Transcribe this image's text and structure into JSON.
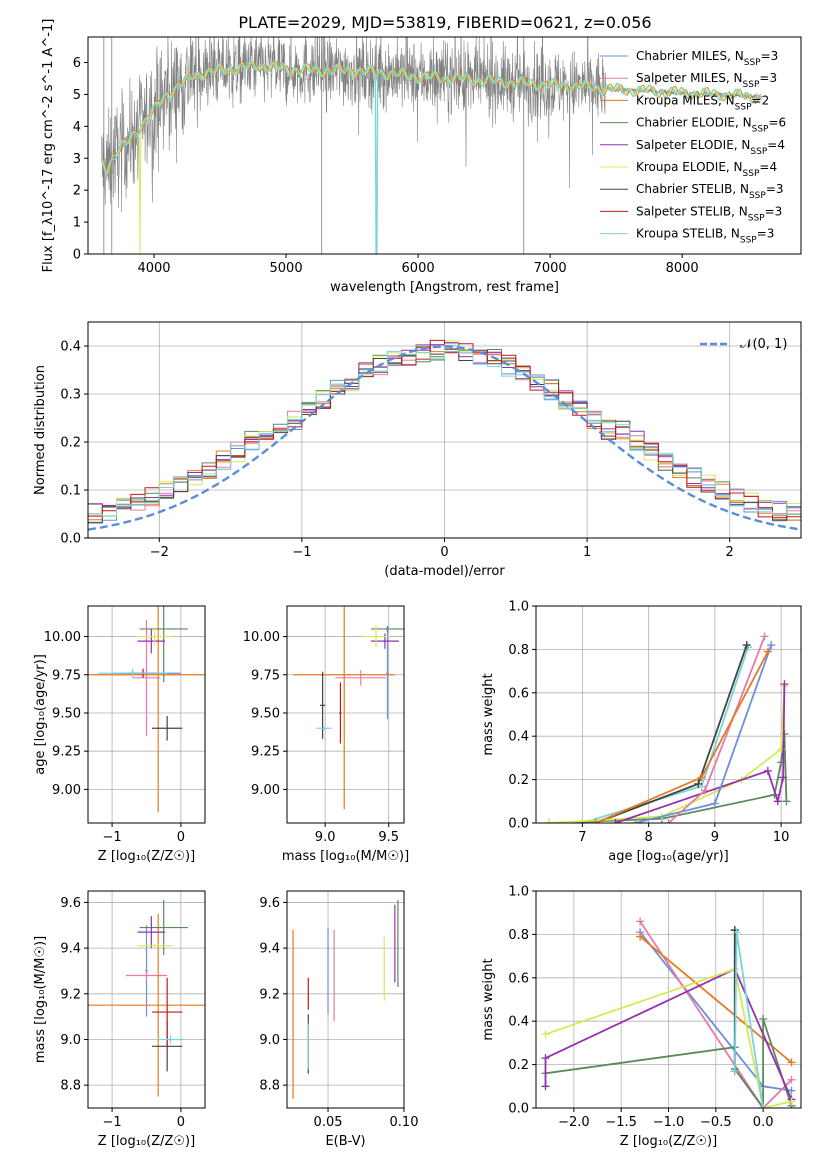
{
  "title": "PLATE=2029, MJD=53819, FIBERID=0621, z=0.056",
  "models": [
    {
      "name": "Chabrier MILES, N",
      "sub": "SSP",
      "n": "=3",
      "color": "#6a8fdc"
    },
    {
      "name": "Salpeter MILES, N",
      "sub": "SSP",
      "n": "=3",
      "color": "#e77aa8"
    },
    {
      "name": "Kroupa MILES, N",
      "sub": "SSP",
      "n": "=2",
      "color": "#e57a23"
    },
    {
      "name": "Chabrier ELODIE, N",
      "sub": "SSP",
      "n": "=6",
      "color": "#5a8a5e"
    },
    {
      "name": "Salpeter ELODIE, N",
      "sub": "SSP",
      "n": "=4",
      "color": "#9630b0"
    },
    {
      "name": "Kroupa ELODIE, N",
      "sub": "SSP",
      "n": "=4",
      "color": "#d4ea58"
    },
    {
      "name": "Chabrier STELIB, N",
      "sub": "SSP",
      "n": "=3",
      "color": "#444444"
    },
    {
      "name": "Salpeter STELIB, N",
      "sub": "SSP",
      "n": "=3",
      "color": "#c01818"
    },
    {
      "name": "Kroupa STELIB, N",
      "sub": "SSP",
      "n": "=3",
      "color": "#7ad4dc"
    }
  ],
  "chart_data": [
    {
      "id": "spectrum",
      "type": "line",
      "xlabel": "wavelength [Angstrom, rest frame]",
      "ylabel": "Flux [f_λ10^-17 erg cm^-2 s^-1 A^-1]",
      "xlim": [
        3500,
        8900
      ],
      "ylim": [
        0,
        6.8
      ],
      "xticks": [
        4000,
        5000,
        6000,
        7000,
        8000
      ],
      "yticks": [
        0,
        1,
        2,
        3,
        4,
        5,
        6
      ],
      "grid": false,
      "legend": "right",
      "data_color": "#808080",
      "model_color": "#7ad4dc",
      "continuum": [
        [
          3600,
          2.9
        ],
        [
          3650,
          2.7
        ],
        [
          3700,
          3.1
        ],
        [
          3800,
          3.5
        ],
        [
          3900,
          4.0
        ],
        [
          4000,
          4.5
        ],
        [
          4100,
          5.0
        ],
        [
          4200,
          5.3
        ],
        [
          4300,
          5.6
        ],
        [
          4500,
          5.75
        ],
        [
          4800,
          5.9
        ],
        [
          5000,
          5.8
        ],
        [
          5200,
          5.75
        ],
        [
          5500,
          5.75
        ],
        [
          5800,
          5.65
        ],
        [
          6000,
          5.55
        ],
        [
          6300,
          5.5
        ],
        [
          6600,
          5.4
        ],
        [
          7000,
          5.3
        ],
        [
          7200,
          5.25
        ],
        [
          7400,
          5.2
        ],
        [
          7500,
          5.15
        ],
        [
          7800,
          5.1
        ],
        [
          8000,
          5.05
        ],
        [
          8300,
          5.0
        ],
        [
          8500,
          4.95
        ],
        [
          8600,
          4.9
        ]
      ],
      "noise_end": 7420
    },
    {
      "id": "residuals",
      "type": "step",
      "xlabel": "(data-model)/error",
      "ylabel": "Normed distribution",
      "xlim": [
        -2.5,
        2.5
      ],
      "ylim": [
        0,
        0.45
      ],
      "xticks": [
        -2,
        -1,
        0,
        1,
        2
      ],
      "yticks": [
        0.0,
        0.1,
        0.2,
        0.3,
        0.4
      ],
      "grid": true,
      "legend": "top-right",
      "gauss_label": "𝒩(0, 1)",
      "gauss_color": "#5b8ed6",
      "bin_width": 0.1,
      "series_scatter": 0.022
    },
    {
      "id": "age_vs_Z",
      "type": "errorbar",
      "xlabel": "Z [log₁₀(Z/Z☉)]",
      "ylabel": "age  [log₁₀(age/yr)]",
      "xlim": [
        -1.35,
        0.35
      ],
      "ylim": [
        8.78,
        10.2
      ],
      "xticks": [
        -1,
        0
      ],
      "yticks": [
        9.0,
        9.25,
        9.5,
        9.75,
        10.0
      ],
      "grid": true,
      "points": [
        {
          "m": 0,
          "x": -0.5,
          "xerr": 0.5,
          "y": 9.76,
          "yerr": 0.02
        },
        {
          "m": 1,
          "x": -0.5,
          "xerr": 0.2,
          "y": 9.73,
          "yerr": 0.38
        },
        {
          "m": 2,
          "x": -0.33,
          "xerr": 1.3,
          "y": 9.75,
          "yerr": 0.9
        },
        {
          "m": 3,
          "x": -0.25,
          "xerr": 0.35,
          "y": 10.05,
          "yerr": 0.35
        },
        {
          "m": 4,
          "x": -0.43,
          "xerr": 0.2,
          "y": 9.97,
          "yerr": 0.08
        },
        {
          "m": 5,
          "x": -0.38,
          "xerr": 0.26,
          "y": 10.0,
          "yerr": 0.06
        },
        {
          "m": 6,
          "x": -0.2,
          "xerr": 0.22,
          "y": 9.4,
          "yerr": 0.08
        },
        {
          "m": 7,
          "x": -0.55,
          "xerr": 0.22,
          "y": 9.76,
          "yerr": 0.03
        },
        {
          "m": 8,
          "x": -0.7,
          "xerr": 0.5,
          "y": 9.76,
          "yerr": 0.03
        }
      ]
    },
    {
      "id": "age_vs_mass",
      "type": "errorbar",
      "xlabel": "mass [log₁₀(M/M☉)]",
      "ylabel": "",
      "xlim": [
        8.7,
        9.62
      ],
      "ylim": [
        8.78,
        10.2
      ],
      "xticks": [
        9.0,
        9.5
      ],
      "yticks": [
        9.0,
        9.25,
        9.5,
        9.75,
        10.0
      ],
      "grid": true,
      "points": [
        {
          "m": 0,
          "x": 9.49,
          "xerr": 0.01,
          "y": 9.76,
          "yerr": 0.3
        },
        {
          "m": 1,
          "x": 9.28,
          "xerr": 0.2,
          "y": 9.73,
          "yerr": 0.05
        },
        {
          "m": 2,
          "x": 9.15,
          "xerr": 0.4,
          "y": 9.75,
          "yerr": 0.88
        },
        {
          "m": 3,
          "x": 9.49,
          "xerr": 0.13,
          "y": 10.05,
          "yerr": 0.02
        },
        {
          "m": 4,
          "x": 9.47,
          "xerr": 0.11,
          "y": 9.97,
          "yerr": 0.05
        },
        {
          "m": 5,
          "x": 9.4,
          "xerr": 0.1,
          "y": 10.0,
          "yerr": 0.07
        },
        {
          "m": 6,
          "x": 8.98,
          "xerr": 0.02,
          "y": 9.55,
          "yerr": 0.22
        },
        {
          "m": 7,
          "x": 9.12,
          "xerr": 0.01,
          "y": 9.5,
          "yerr": 0.2
        },
        {
          "m": 8,
          "x": 8.99,
          "xerr": 0.06,
          "y": 9.4,
          "yerr": 0.01
        }
      ]
    },
    {
      "id": "weight_vs_age",
      "type": "line",
      "xlabel": "age  [log₁₀(age/yr)]",
      "ylabel": "mass weight",
      "xlim": [
        6.3,
        10.3
      ],
      "ylim": [
        0,
        1.0
      ],
      "xticks": [
        7,
        8,
        9,
        10
      ],
      "yticks": [
        0.0,
        0.2,
        0.4,
        0.6,
        0.8,
        1.0
      ],
      "grid": true,
      "series": [
        {
          "m": 8,
          "x": [
            7.0,
            8.8,
            9.5
          ],
          "y": [
            0.0,
            0.17,
            0.81
          ]
        },
        {
          "m": 6,
          "x": [
            7.2,
            8.75,
            9.48
          ],
          "y": [
            0.0,
            0.18,
            0.82
          ]
        },
        {
          "m": 3,
          "x": [
            6.5,
            8.2,
            9.9,
            10.0,
            10.05,
            10.08
          ],
          "y": [
            0.0,
            0.02,
            0.13,
            0.28,
            0.41,
            0.1
          ]
        },
        {
          "m": 5,
          "x": [
            6.5,
            8.2,
            9.4,
            10.0,
            10.05
          ],
          "y": [
            0.0,
            0.03,
            0.2,
            0.34,
            0.63
          ]
        },
        {
          "m": 4,
          "x": [
            7.5,
            9.8,
            9.95,
            10.03,
            10.05
          ],
          "y": [
            0.0,
            0.24,
            0.1,
            0.21,
            0.64
          ]
        },
        {
          "m": 0,
          "x": [
            7.8,
            9.0,
            9.85
          ],
          "y": [
            0.0,
            0.09,
            0.82
          ]
        },
        {
          "m": 1,
          "x": [
            8.3,
            8.85,
            9.75
          ],
          "y": [
            0.0,
            0.15,
            0.86
          ]
        },
        {
          "m": 2,
          "x": [
            7.2,
            8.8,
            9.8
          ],
          "y": [
            0.0,
            0.21,
            0.79
          ]
        }
      ]
    },
    {
      "id": "mass_vs_Z",
      "type": "errorbar",
      "xlabel": "Z [log₁₀(Z/Z☉)]",
      "ylabel": "mass [log₁₀(M/M☉)]",
      "xlim": [
        -1.35,
        0.35
      ],
      "ylim": [
        8.7,
        9.65
      ],
      "xticks": [
        -1,
        0
      ],
      "yticks": [
        8.8,
        9.0,
        9.2,
        9.4,
        9.6
      ],
      "grid": true,
      "points": [
        {
          "m": 0,
          "x": -0.5,
          "xerr": 0.02,
          "y": 9.3,
          "yerr": 0.2
        },
        {
          "m": 1,
          "x": -0.5,
          "xerr": 0.3,
          "y": 9.28,
          "yerr": 0.02
        },
        {
          "m": 2,
          "x": -0.33,
          "xerr": 1.3,
          "y": 9.15,
          "yerr": 0.4
        },
        {
          "m": 3,
          "x": -0.25,
          "xerr": 0.35,
          "y": 9.49,
          "yerr": 0.12
        },
        {
          "m": 4,
          "x": -0.43,
          "xerr": 0.2,
          "y": 9.47,
          "yerr": 0.07
        },
        {
          "m": 5,
          "x": -0.38,
          "xerr": 0.26,
          "y": 9.41,
          "yerr": 0.01
        },
        {
          "m": 6,
          "x": -0.2,
          "xerr": 0.22,
          "y": 8.97,
          "yerr": 0.11
        },
        {
          "m": 7,
          "x": -0.2,
          "xerr": 0.22,
          "y": 9.12,
          "yerr": 0.15
        },
        {
          "m": 8,
          "x": -0.15,
          "xerr": 0.2,
          "y": 9.0,
          "yerr": 0.02
        }
      ]
    },
    {
      "id": "mass_vs_ebv",
      "type": "errorbar",
      "xlabel": "E(B-V)",
      "ylabel": "",
      "xlim": [
        0.023,
        0.1
      ],
      "ylim": [
        8.7,
        9.65
      ],
      "xticks": [
        0.05,
        0.1
      ],
      "xticklabels": [
        "0.05",
        "0.10"
      ],
      "yticks": [
        8.8,
        9.0,
        9.2,
        9.4,
        9.6
      ],
      "grid": true,
      "points": [
        {
          "m": 0,
          "x": 0.05,
          "xerr": 0,
          "y": 9.3,
          "yerr": 0.19
        },
        {
          "m": 1,
          "x": 0.054,
          "xerr": 0,
          "y": 9.28,
          "yerr": 0.2
        },
        {
          "m": 2,
          "x": 0.027,
          "xerr": 0,
          "y": 9.11,
          "yerr": 0.37
        },
        {
          "m": 3,
          "x": 0.096,
          "xerr": 0,
          "y": 9.42,
          "yerr": 0.19
        },
        {
          "m": 4,
          "x": 0.094,
          "xerr": 0,
          "y": 9.42,
          "yerr": 0.17
        },
        {
          "m": 5,
          "x": 0.087,
          "xerr": 0,
          "y": 9.31,
          "yerr": 0.14
        },
        {
          "m": 6,
          "x": 0.037,
          "xerr": 0,
          "y": 8.98,
          "yerr": 0.13
        },
        {
          "m": 7,
          "x": 0.037,
          "xerr": 0,
          "y": 9.2,
          "yerr": 0.07
        },
        {
          "m": 8,
          "x": 0.037,
          "xerr": 0,
          "y": 8.97,
          "yerr": 0.1
        }
      ]
    },
    {
      "id": "weight_vs_Z",
      "type": "line",
      "xlabel": "Z [log₁₀(Z/Z☉)]",
      "ylabel": "mass weight",
      "xlim": [
        -2.4,
        0.4
      ],
      "ylim": [
        0,
        1.0
      ],
      "xticks": [
        -2.0,
        -1.5,
        -1.0,
        -0.5,
        0.0
      ],
      "yticks": [
        0.0,
        0.2,
        0.4,
        0.6,
        0.8,
        1.0
      ],
      "grid": true,
      "series": [
        {
          "m": 0,
          "x": [
            -1.3,
            0.0,
            0.3
          ],
          "y": [
            0.81,
            0.1,
            0.08
          ]
        },
        {
          "m": 1,
          "x": [
            -1.3,
            0.0,
            0.3
          ],
          "y": [
            0.86,
            0.0,
            0.13
          ]
        },
        {
          "m": 2,
          "x": [
            -1.3,
            0.3
          ],
          "y": [
            0.79,
            0.21
          ]
        },
        {
          "m": 3,
          "x": [
            -2.3,
            -0.3,
            -0.3,
            -0.3,
            0.0,
            0.0,
            0.3
          ],
          "y": [
            0.16,
            0.28,
            0.82,
            0.18,
            0.0,
            0.41,
            0.01
          ]
        },
        {
          "m": 4,
          "x": [
            -2.3,
            -2.3,
            -0.3,
            0.3
          ],
          "y": [
            0.1,
            0.23,
            0.64,
            0.04
          ]
        },
        {
          "m": 5,
          "x": [
            -2.3,
            -0.3,
            0.0,
            0.3
          ],
          "y": [
            0.34,
            0.64,
            0.0,
            0.03
          ]
        },
        {
          "m": 6,
          "x": [
            -0.3,
            -0.3
          ],
          "y": [
            0.17,
            0.82
          ]
        },
        {
          "m": 8,
          "x": [
            -0.3,
            -0.28,
            0.0
          ],
          "y": [
            0.17,
            0.81,
            0.0
          ]
        }
      ]
    }
  ]
}
